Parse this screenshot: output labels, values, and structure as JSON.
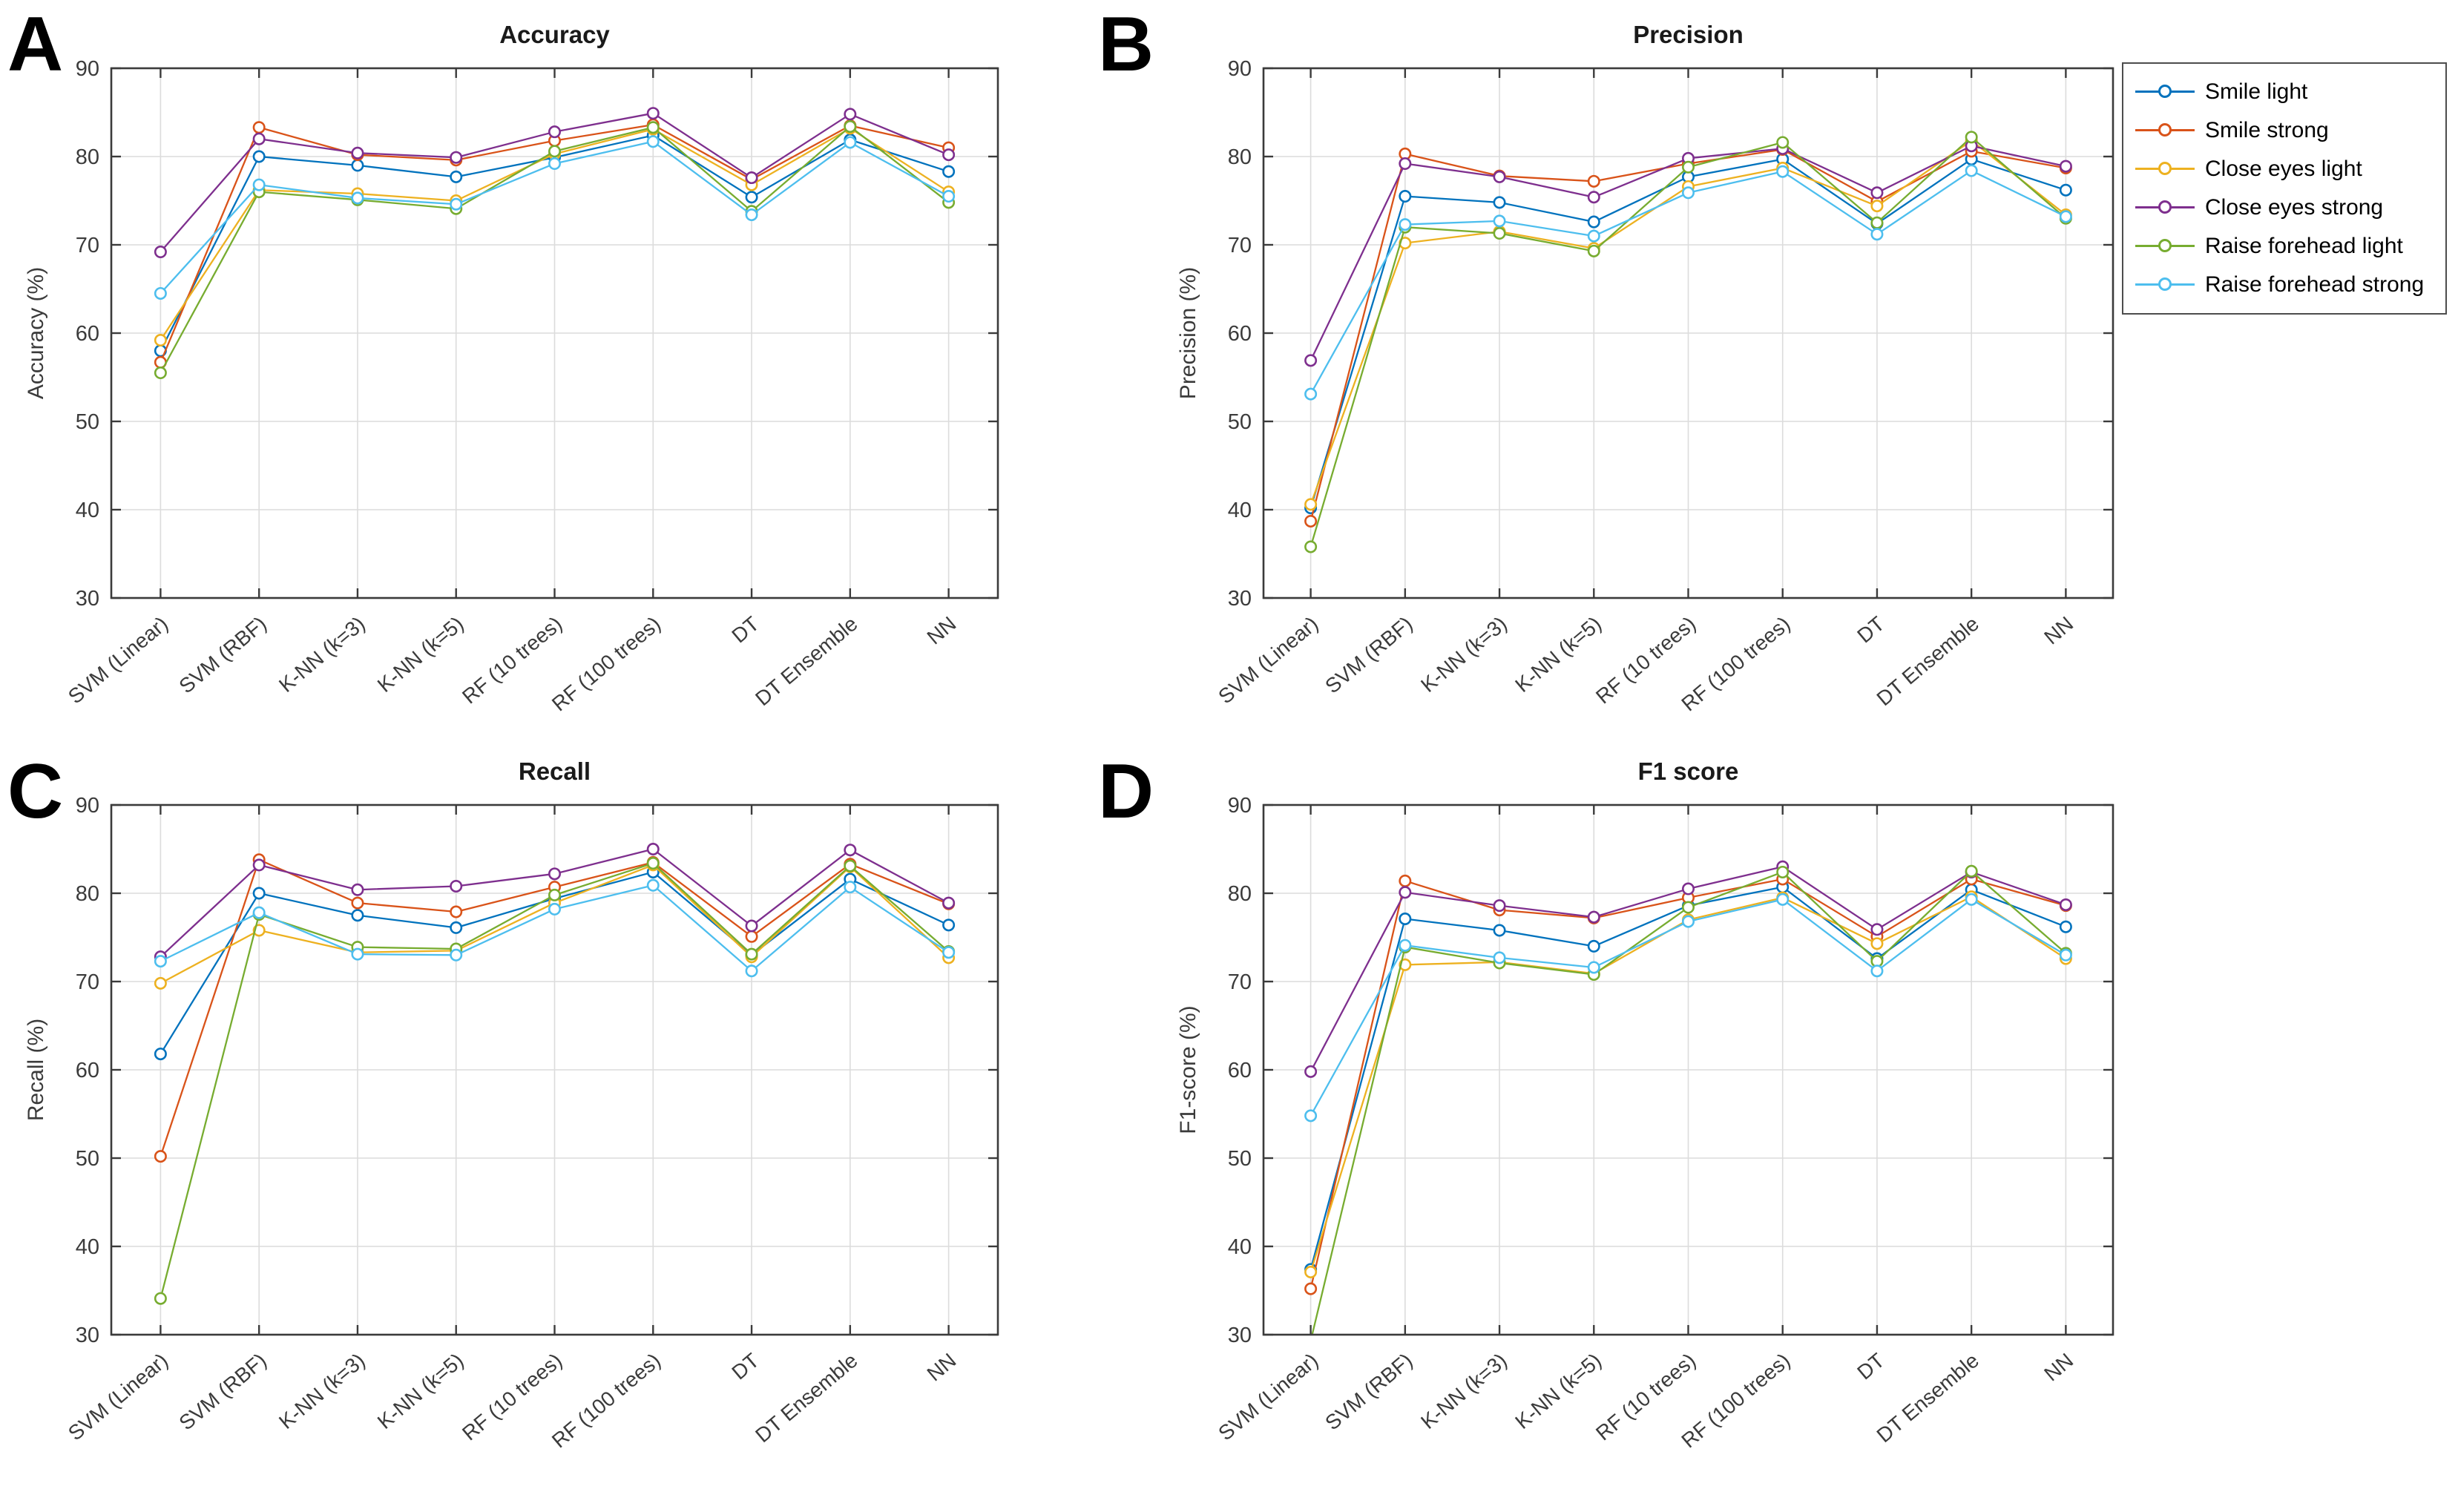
{
  "figure": {
    "background": "#ffffff",
    "axis_color": "#3b3b3b",
    "grid_color": "#dcdcdc"
  },
  "panels": [
    {
      "letter": "A"
    },
    {
      "letter": "B"
    },
    {
      "letter": "C"
    },
    {
      "letter": "D"
    }
  ],
  "legend": {
    "position": "outside-top-right",
    "border_color": "#4d4d4d",
    "items": [
      {
        "label": "Smile light",
        "color": "#0072BD"
      },
      {
        "label": "Smile strong",
        "color": "#D95319"
      },
      {
        "label": "Close eyes light",
        "color": "#EDB120"
      },
      {
        "label": "Close eyes strong",
        "color": "#7E2F8E"
      },
      {
        "label": "Raise forehead light",
        "color": "#77AC30"
      },
      {
        "label": "Raise forehead strong",
        "color": "#4DBEEE"
      }
    ]
  },
  "chart_data": [
    {
      "type": "line",
      "title": "Accuracy",
      "xlabel": "",
      "ylabel": "Accuracy (%)",
      "ylim": [
        30,
        90
      ],
      "yticks": [
        30,
        40,
        50,
        60,
        70,
        80,
        90
      ],
      "grid": true,
      "categories": [
        "SVM (Linear)",
        "SVM (RBF)",
        "K-NN (k=3)",
        "K-NN (k=5)",
        "RF (10 trees)",
        "RF (100 trees)",
        "DT",
        "DT Ensemble",
        "NN"
      ],
      "series": [
        {
          "name": "Smile light",
          "color": "#0072BD",
          "values": [
            58.0,
            80.0,
            79.0,
            77.7,
            79.9,
            82.4,
            75.4,
            81.9,
            78.3
          ]
        },
        {
          "name": "Smile strong",
          "color": "#D95319",
          "values": [
            56.7,
            83.3,
            80.2,
            79.6,
            81.8,
            83.6,
            77.4,
            83.5,
            81.0
          ]
        },
        {
          "name": "Close eyes light",
          "color": "#EDB120",
          "values": [
            59.2,
            76.2,
            75.8,
            75.0,
            80.3,
            83.1,
            76.8,
            83.2,
            76.0
          ]
        },
        {
          "name": "Close eyes strong",
          "color": "#7E2F8E",
          "values": [
            69.2,
            82.0,
            80.4,
            79.9,
            82.8,
            84.9,
            77.6,
            84.8,
            80.2
          ]
        },
        {
          "name": "Raise forehead light",
          "color": "#77AC30",
          "values": [
            55.5,
            76.0,
            75.1,
            74.1,
            80.6,
            83.3,
            73.8,
            83.4,
            74.8
          ]
        },
        {
          "name": "Raise forehead strong",
          "color": "#4DBEEE",
          "values": [
            64.5,
            76.8,
            75.3,
            74.6,
            79.2,
            81.7,
            73.4,
            81.6,
            75.5
          ]
        }
      ]
    },
    {
      "type": "line",
      "title": "Precision",
      "xlabel": "",
      "ylabel": "Precision (%)",
      "ylim": [
        30,
        90
      ],
      "yticks": [
        30,
        40,
        50,
        60,
        70,
        80,
        90
      ],
      "grid": true,
      "categories": [
        "SVM (Linear)",
        "SVM (RBF)",
        "K-NN (k=3)",
        "K-NN (k=5)",
        "RF (10 trees)",
        "RF (100 trees)",
        "DT",
        "DT Ensemble",
        "NN"
      ],
      "series": [
        {
          "name": "Smile light",
          "color": "#0072BD",
          "values": [
            40.2,
            75.5,
            74.8,
            72.6,
            77.7,
            79.7,
            72.4,
            79.7,
            76.2
          ]
        },
        {
          "name": "Smile strong",
          "color": "#D95319",
          "values": [
            38.7,
            80.3,
            77.8,
            77.2,
            79.2,
            80.8,
            74.9,
            80.6,
            78.7
          ]
        },
        {
          "name": "Close eyes light",
          "color": "#EDB120",
          "values": [
            40.6,
            70.2,
            71.5,
            69.6,
            76.6,
            78.7,
            74.4,
            81.8,
            73.4
          ]
        },
        {
          "name": "Close eyes strong",
          "color": "#7E2F8E",
          "values": [
            56.9,
            79.2,
            77.7,
            75.4,
            79.8,
            80.9,
            75.9,
            81.2,
            78.9
          ]
        },
        {
          "name": "Raise forehead light",
          "color": "#77AC30",
          "values": [
            35.8,
            72.0,
            71.3,
            69.3,
            78.8,
            81.6,
            72.5,
            82.2,
            73.0
          ]
        },
        {
          "name": "Raise forehead strong",
          "color": "#4DBEEE",
          "values": [
            53.1,
            72.3,
            72.7,
            71.0,
            75.9,
            78.3,
            71.2,
            78.4,
            73.2
          ]
        }
      ]
    },
    {
      "type": "line",
      "title": "Recall",
      "xlabel": "",
      "ylabel": "Recall (%)",
      "ylim": [
        30,
        90
      ],
      "yticks": [
        30,
        40,
        50,
        60,
        70,
        80,
        90
      ],
      "grid": true,
      "categories": [
        "SVM (Linear)",
        "SVM (RBF)",
        "K-NN (k=3)",
        "K-NN (k=5)",
        "RF (10 trees)",
        "RF (100 trees)",
        "DT",
        "DT Ensemble",
        "NN"
      ],
      "series": [
        {
          "name": "Smile light",
          "color": "#0072BD",
          "values": [
            61.8,
            80.0,
            77.5,
            76.1,
            79.4,
            82.4,
            73.0,
            81.6,
            76.4
          ]
        },
        {
          "name": "Smile strong",
          "color": "#D95319",
          "values": [
            50.2,
            83.8,
            78.9,
            77.9,
            80.7,
            83.5,
            75.1,
            83.3,
            78.8
          ]
        },
        {
          "name": "Close eyes light",
          "color": "#EDB120",
          "values": [
            69.8,
            75.8,
            73.3,
            73.5,
            78.9,
            83.2,
            72.8,
            83.0,
            72.7
          ]
        },
        {
          "name": "Close eyes strong",
          "color": "#7E2F8E",
          "values": [
            72.8,
            83.2,
            80.4,
            80.8,
            82.2,
            85.0,
            76.3,
            84.9,
            78.9
          ]
        },
        {
          "name": "Raise forehead light",
          "color": "#77AC30",
          "values": [
            34.1,
            77.6,
            73.9,
            73.7,
            79.8,
            83.4,
            73.1,
            83.1,
            73.4
          ]
        },
        {
          "name": "Raise forehead strong",
          "color": "#4DBEEE",
          "values": [
            72.3,
            77.8,
            73.1,
            73.0,
            78.2,
            80.9,
            71.2,
            80.7,
            73.3
          ]
        }
      ]
    },
    {
      "type": "line",
      "title": "F1 score",
      "xlabel": "",
      "ylabel": "F1-score (%)",
      "ylim": [
        30,
        90
      ],
      "yticks": [
        30,
        40,
        50,
        60,
        70,
        80,
        90
      ],
      "grid": true,
      "categories": [
        "SVM (Linear)",
        "SVM (RBF)",
        "K-NN (k=3)",
        "K-NN (k=5)",
        "RF (10 trees)",
        "RF (100 trees)",
        "DT",
        "DT Ensemble",
        "NN"
      ],
      "series": [
        {
          "name": "Smile light",
          "color": "#0072BD",
          "values": [
            37.4,
            77.1,
            75.8,
            74.0,
            78.6,
            80.7,
            72.6,
            80.4,
            76.2
          ]
        },
        {
          "name": "Smile strong",
          "color": "#D95319",
          "values": [
            35.2,
            81.4,
            78.1,
            77.2,
            79.5,
            81.6,
            75.1,
            81.6,
            78.6
          ]
        },
        {
          "name": "Close eyes light",
          "color": "#EDB120",
          "values": [
            37.1,
            71.9,
            72.2,
            70.9,
            77.0,
            79.5,
            74.3,
            79.6,
            72.6
          ]
        },
        {
          "name": "Close eyes strong",
          "color": "#7E2F8E",
          "values": [
            59.8,
            80.1,
            78.6,
            77.3,
            80.5,
            83.0,
            75.9,
            82.4,
            78.7
          ]
        },
        {
          "name": "Raise forehead light",
          "color": "#77AC30",
          "values": [
            29.3,
            73.9,
            72.1,
            70.8,
            78.4,
            82.4,
            72.3,
            82.5,
            73.2
          ]
        },
        {
          "name": "Raise forehead strong",
          "color": "#4DBEEE",
          "values": [
            54.8,
            74.1,
            72.7,
            71.6,
            76.8,
            79.3,
            71.2,
            79.3,
            73.0
          ]
        }
      ]
    }
  ]
}
